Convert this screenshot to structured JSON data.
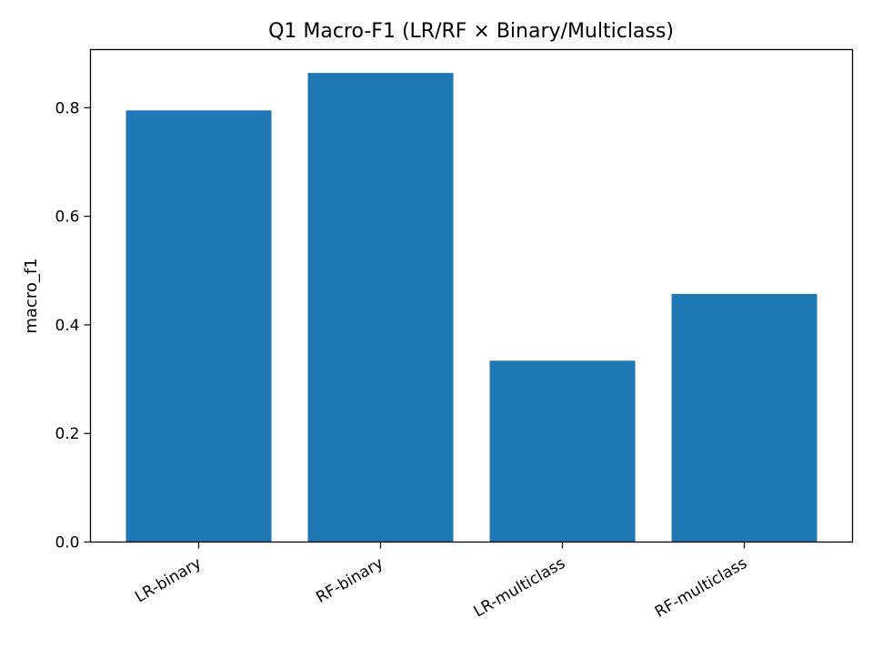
{
  "chart_data": {
    "type": "bar",
    "title": "Q1 Macro-F1 (LR/RF × Binary/Multiclass)",
    "xlabel": "",
    "ylabel": "macro_f1",
    "categories": [
      "LR-binary",
      "RF-binary",
      "LR-multiclass",
      "RF-multiclass"
    ],
    "values": [
      0.795,
      0.864,
      0.334,
      0.457
    ],
    "ylim": [
      0,
      0.907
    ],
    "yticks": [
      {
        "value": 0.0,
        "label": "0.0"
      },
      {
        "value": 0.2,
        "label": "0.2"
      },
      {
        "value": 0.4,
        "label": "0.4"
      },
      {
        "value": 0.6,
        "label": "0.6"
      },
      {
        "value": 0.8,
        "label": "0.8"
      }
    ],
    "bar_color": "#1f77b4",
    "grid": false,
    "legend": false
  }
}
